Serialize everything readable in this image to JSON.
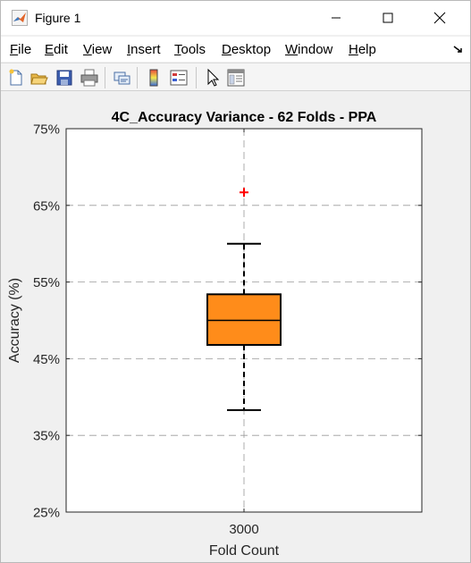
{
  "window": {
    "title": "Figure 1"
  },
  "menu": {
    "items": [
      {
        "label": "File",
        "mn": "F",
        "rest": "ile"
      },
      {
        "label": "Edit",
        "mn": "E",
        "rest": "dit"
      },
      {
        "label": "View",
        "mn": "V",
        "rest": "iew"
      },
      {
        "label": "Insert",
        "mn": "I",
        "rest": "nsert"
      },
      {
        "label": "Tools",
        "mn": "T",
        "rest": "ools"
      },
      {
        "label": "Desktop",
        "mn": "D",
        "rest": "esktop"
      },
      {
        "label": "Window",
        "mn": "W",
        "rest": "indow"
      },
      {
        "label": "Help",
        "mn": "H",
        "rest": "elp"
      }
    ]
  },
  "toolbar": {
    "buttons": [
      "new-figure-icon",
      "open-file-icon",
      "save-icon",
      "print-icon",
      "link-plot-icon",
      "insert-colorbar-icon",
      "insert-legend-icon",
      "edit-plot-icon",
      "property-inspector-icon"
    ]
  },
  "chart_data": {
    "type": "box",
    "title": "4C_Accuracy Variance - 62 Folds - PPA",
    "xlabel": "Fold Count",
    "ylabel": "Accuracy (%)",
    "categories": [
      "3000"
    ],
    "ylim": [
      25,
      75
    ],
    "yticks": [
      25,
      35,
      45,
      55,
      65,
      75
    ],
    "ytick_labels": [
      "25%",
      "35%",
      "45%",
      "55%",
      "65%",
      "75%"
    ],
    "grid": true,
    "boxes": [
      {
        "category": "3000",
        "whisker_low": 38.3,
        "q1": 46.8,
        "median": 50.0,
        "q3": 53.4,
        "whisker_high": 60.0,
        "outliers": [
          66.7
        ]
      }
    ],
    "colors": {
      "box_fill": "#ff8c1a",
      "outlier": "#ff0000",
      "grid": "#9a9a9a",
      "axes": "#262626"
    }
  }
}
